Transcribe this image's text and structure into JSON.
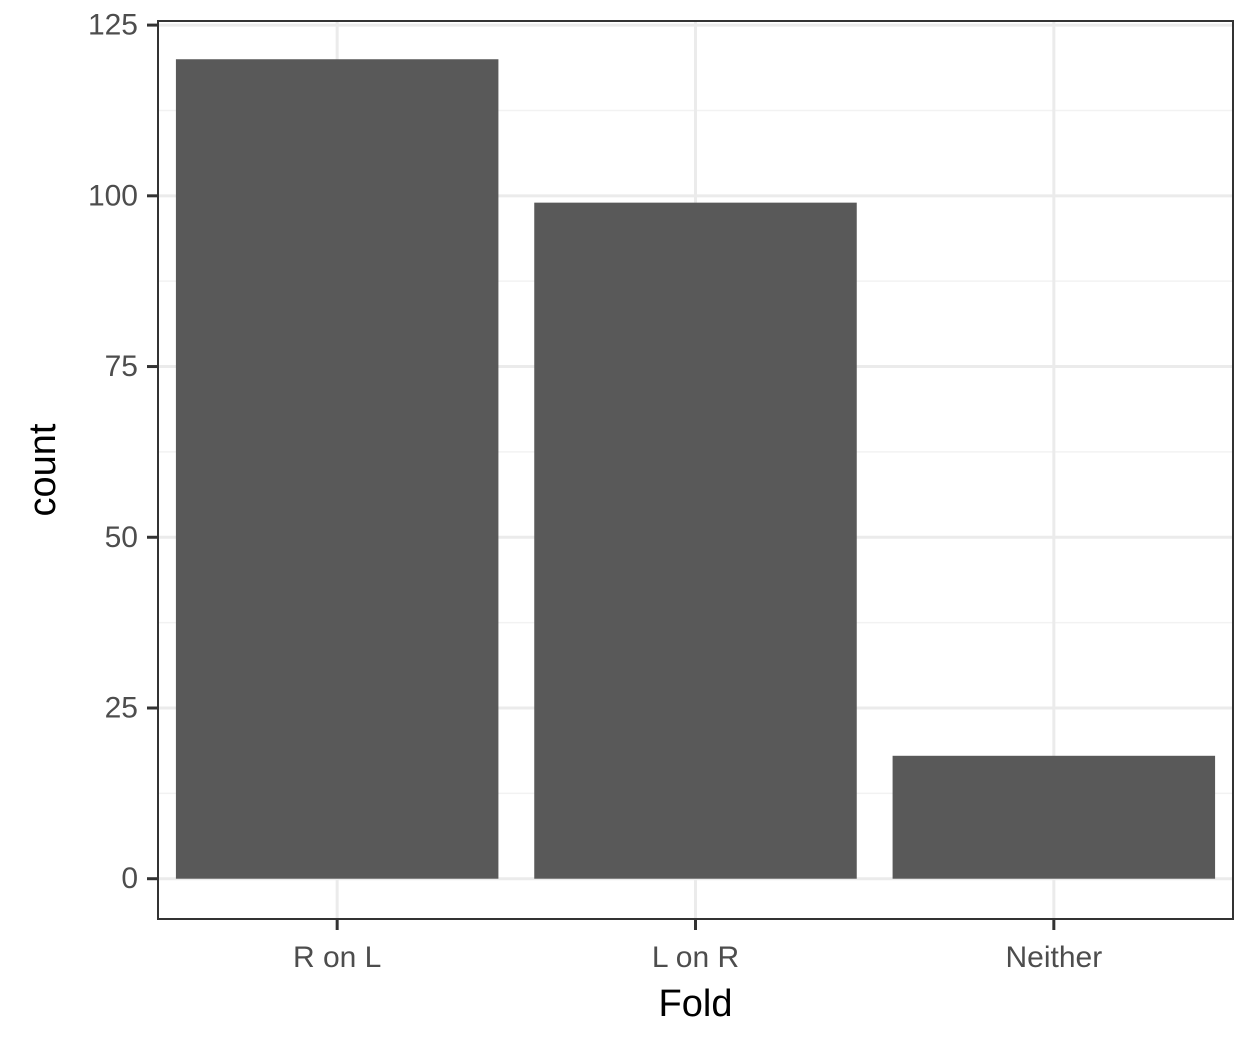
{
  "chart_data": {
    "type": "bar",
    "title": "",
    "xlabel": "Fold",
    "ylabel": "count",
    "categories": [
      "R on L",
      "L on R",
      "Neither"
    ],
    "values": [
      120,
      99,
      18
    ],
    "ylim": [
      -5.9,
      125.6
    ],
    "yticks": [
      0,
      25,
      50,
      75,
      100,
      125
    ],
    "ytick_labels": [
      "0",
      "25",
      "50",
      "75",
      "100",
      "125"
    ],
    "grid": true,
    "theme": "bw",
    "colors": {
      "bar": "#595959",
      "grid_major": "#ebebeb",
      "grid_minor": "#f2f2f2",
      "panel_border": "#333333",
      "tick": "#333333",
      "tick_label": "#4d4d4d",
      "axis_title": "#000000"
    }
  }
}
